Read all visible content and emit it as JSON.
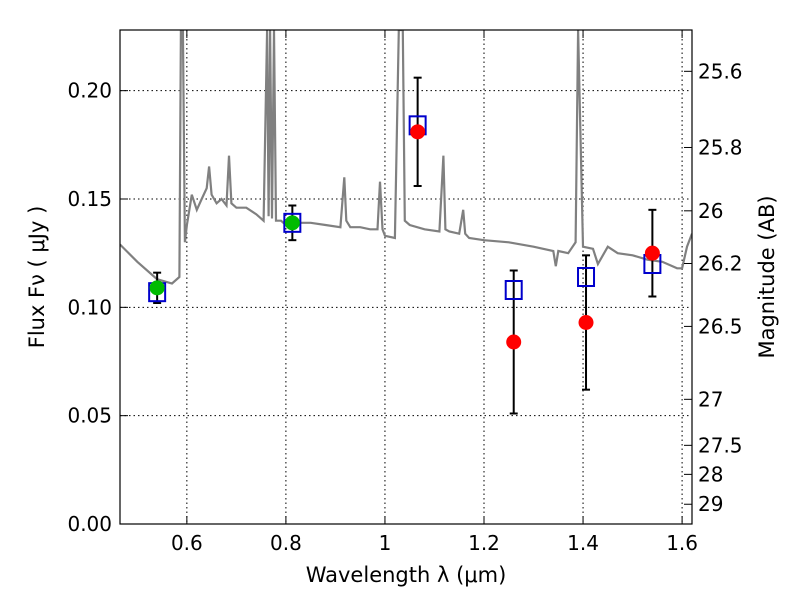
{
  "chart_data": {
    "type": "scatter",
    "title": "",
    "xlabel": "Wavelength  λ (μm)",
    "ylabel": "Flux  Fν  ( μJy )",
    "y2label": "Magnitude (AB)",
    "xlim": [
      0.465,
      1.62
    ],
    "ylim": [
      0.0,
      0.228
    ],
    "grid": true,
    "x_ticks": [
      0.6,
      0.8,
      1.0,
      1.2,
      1.4,
      1.6
    ],
    "x_tick_labels": [
      "0.6",
      "0.8",
      "1",
      "1.2",
      "1.4",
      "1.6"
    ],
    "y_ticks": [
      0.0,
      0.05,
      0.1,
      0.15,
      0.2
    ],
    "y_tick_labels": [
      "0.00",
      "0.05",
      "0.10",
      "0.15",
      "0.20"
    ],
    "y2_ticks": [
      "25.6",
      "25.8",
      "26",
      "26.2",
      "26.5",
      "27",
      "27.5",
      "28",
      "29"
    ],
    "y2_tick_values": [
      25.6,
      25.8,
      26.0,
      26.2,
      26.5,
      27.0,
      27.5,
      28.0,
      29.0
    ],
    "colors": {
      "model": "#808080",
      "photometry_green": "#00bb00",
      "photometry_red": "#ff0000",
      "model_box": "#0000cc",
      "errorbar": "#000000"
    },
    "series": [
      {
        "type": "line",
        "color": "#808080",
        "x": [
          0.465,
          0.5,
          0.54,
          0.57,
          0.585,
          0.588,
          0.592,
          0.596,
          0.6,
          0.61,
          0.62,
          0.63,
          0.64,
          0.645,
          0.65,
          0.655,
          0.66,
          0.67,
          0.68,
          0.685,
          0.69,
          0.7,
          0.72,
          0.74,
          0.755,
          0.762,
          0.765,
          0.768,
          0.772,
          0.776,
          0.78,
          0.79,
          0.8,
          0.82,
          0.85,
          0.88,
          0.91,
          0.918,
          0.922,
          0.93,
          0.95,
          0.97,
          0.985,
          0.99,
          0.995,
          1.0,
          1.02,
          1.028,
          1.032,
          1.036,
          1.04,
          1.05,
          1.08,
          1.11,
          1.118,
          1.122,
          1.13,
          1.15,
          1.158,
          1.162,
          1.17,
          1.2,
          1.25,
          1.3,
          1.34,
          1.345,
          1.35,
          1.37,
          1.385,
          1.39,
          1.4,
          1.42,
          1.43,
          1.45,
          1.47,
          1.5,
          1.53,
          1.56,
          1.59,
          1.6,
          1.61,
          1.62
        ],
        "y": [
          0.129,
          0.121,
          0.113,
          0.111,
          0.114,
          0.228,
          0.228,
          0.13,
          0.138,
          0.152,
          0.145,
          0.15,
          0.155,
          0.165,
          0.152,
          0.15,
          0.148,
          0.15,
          0.147,
          0.17,
          0.148,
          0.146,
          0.146,
          0.143,
          0.14,
          0.228,
          0.142,
          0.228,
          0.141,
          0.228,
          0.14,
          0.14,
          0.138,
          0.139,
          0.139,
          0.138,
          0.137,
          0.16,
          0.14,
          0.137,
          0.137,
          0.136,
          0.136,
          0.158,
          0.136,
          0.133,
          0.132,
          0.228,
          0.228,
          0.228,
          0.14,
          0.138,
          0.136,
          0.135,
          0.17,
          0.136,
          0.135,
          0.134,
          0.145,
          0.134,
          0.132,
          0.131,
          0.13,
          0.128,
          0.126,
          0.119,
          0.126,
          0.125,
          0.13,
          0.228,
          0.128,
          0.127,
          0.12,
          0.128,
          0.125,
          0.124,
          0.122,
          0.121,
          0.118,
          0.118,
          0.128,
          0.134
        ]
      },
      {
        "type": "model_points",
        "marker": "square",
        "color": "#0000cc",
        "x": [
          0.54,
          0.813,
          1.066,
          1.26,
          1.406,
          1.54
        ],
        "y": [
          0.107,
          0.139,
          0.184,
          0.108,
          0.114,
          0.12
        ]
      },
      {
        "type": "observed",
        "marker": "circle",
        "x": [
          0.54,
          0.813,
          1.066,
          1.26,
          1.406,
          1.54
        ],
        "y": [
          0.109,
          0.139,
          0.181,
          0.084,
          0.093,
          0.125
        ],
        "yerr": [
          0.007,
          0.008,
          0.025,
          0.033,
          0.031,
          0.02
        ],
        "colors": [
          "#00bb00",
          "#00bb00",
          "#ff0000",
          "#ff0000",
          "#ff0000",
          "#ff0000"
        ]
      }
    ]
  }
}
